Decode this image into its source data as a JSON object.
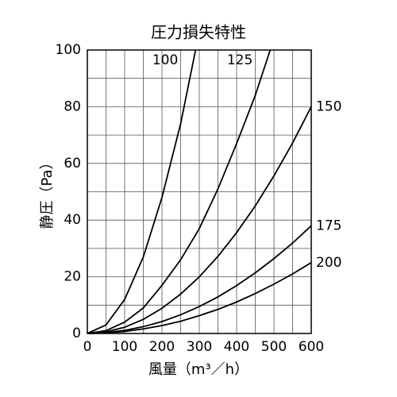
{
  "chart_data": {
    "type": "line",
    "title": "圧力損失特性",
    "x_label": "風量（m³／h）",
    "y_label": "静圧（Pa）",
    "xlim": [
      0,
      600
    ],
    "ylim": [
      0,
      100
    ],
    "xticks": [
      0,
      100,
      200,
      300,
      400,
      500,
      600
    ],
    "yticks": [
      0,
      20,
      40,
      60,
      80,
      100
    ],
    "minor_xticks": [
      50,
      150,
      250,
      350,
      450,
      550
    ],
    "minor_yticks": [
      10,
      30,
      50,
      70,
      90
    ],
    "grid": true,
    "series": [
      {
        "name": "100",
        "color": "#000000",
        "x": [
          0,
          50,
          100,
          150,
          200,
          250,
          290
        ],
        "values": [
          0,
          3,
          12,
          27,
          48,
          74,
          100
        ]
      },
      {
        "name": "125",
        "color": "#000000",
        "x": [
          0,
          50,
          100,
          150,
          200,
          250,
          300,
          350,
          400,
          450,
          490
        ],
        "values": [
          0,
          1,
          4,
          9,
          17,
          26,
          37,
          51,
          67,
          84,
          100
        ]
      },
      {
        "name": "150",
        "color": "#000000",
        "x": [
          0,
          50,
          100,
          150,
          200,
          250,
          300,
          350,
          400,
          450,
          500,
          550,
          600
        ],
        "values": [
          0,
          0.6,
          2.2,
          5,
          8.9,
          13.9,
          20,
          27.2,
          35.6,
          45,
          55.6,
          67.2,
          80
        ]
      },
      {
        "name": "175",
        "color": "#000000",
        "x": [
          0,
          50,
          100,
          150,
          200,
          250,
          300,
          350,
          400,
          450,
          500,
          550,
          600
        ],
        "values": [
          0,
          0.3,
          1.1,
          2.4,
          4.2,
          6.6,
          9.5,
          12.9,
          16.9,
          21.4,
          26.4,
          31.9,
          38
        ]
      },
      {
        "name": "200",
        "color": "#000000",
        "x": [
          0,
          50,
          100,
          150,
          200,
          250,
          300,
          350,
          400,
          450,
          500,
          550,
          600
        ],
        "values": [
          0,
          0.2,
          0.7,
          1.6,
          2.8,
          4.3,
          6.3,
          8.5,
          11.1,
          14.1,
          17.4,
          21,
          25
        ]
      }
    ]
  }
}
